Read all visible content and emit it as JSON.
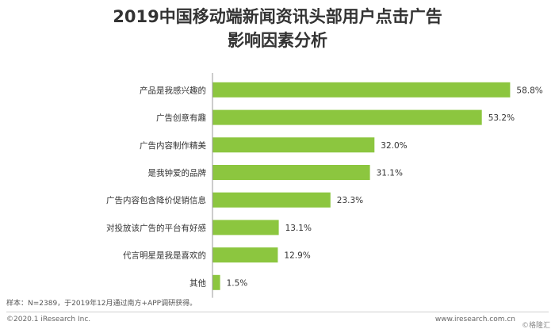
{
  "chart_data": {
    "type": "bar",
    "orientation": "horizontal",
    "title_lines": [
      "2019中国移动端新闻资讯头部用户点击广告",
      "影响因素分析"
    ],
    "categories": [
      "产品是我感兴趣的",
      "广告创意有趣",
      "广告内容制作精美",
      "是我钟爱的品牌",
      "广告内容包含降价促销信息",
      "对投放该广告的平台有好感",
      "代言明星是我是喜欢的",
      "其他"
    ],
    "values": [
      58.8,
      53.2,
      32.0,
      31.1,
      23.3,
      13.1,
      12.9,
      1.5
    ],
    "value_labels": [
      "58.8%",
      "53.2%",
      "32.0%",
      "31.1%",
      "23.3%",
      "13.1%",
      "12.9%",
      "1.5%"
    ],
    "xlim": [
      0,
      65
    ],
    "grid": false,
    "colors": {
      "bar": "#8cc63f",
      "axis": "#9a9a9a",
      "text": "#333333"
    }
  },
  "footer": {
    "note": "样本：N=2389，于2019年12月通过南方+APP调研获得。",
    "copyright": "©2020.1 iResearch Inc.",
    "website": "www.iresearch.com.cn",
    "watermark": "©格隆汇"
  }
}
